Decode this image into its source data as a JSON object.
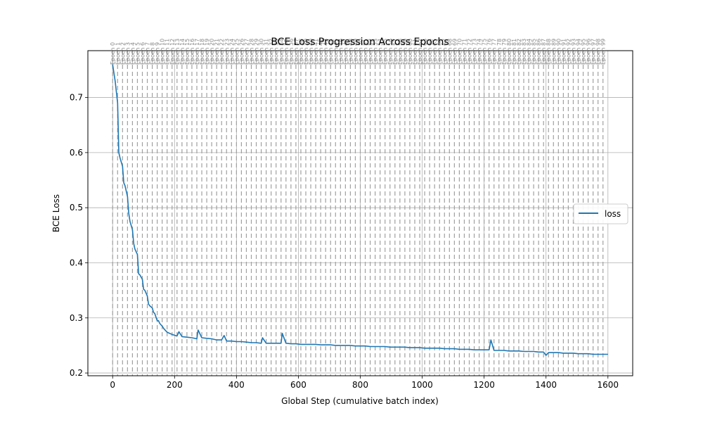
{
  "chart_data": {
    "type": "line",
    "title": "BCE Loss Progression Across Epochs",
    "xlabel": "Global Step (cumulative batch index)",
    "ylabel": "BCE Loss",
    "xlim": [
      -80,
      1680
    ],
    "ylim": [
      0.195,
      0.785
    ],
    "xticks": [
      0,
      200,
      400,
      600,
      800,
      1000,
      1200,
      1400,
      1600
    ],
    "yticks": [
      0.2,
      0.3,
      0.4,
      0.5,
      0.6,
      0.7
    ],
    "grid": true,
    "legend": {
      "position": "center-right",
      "entries": [
        "loss"
      ]
    },
    "epoch_markers": {
      "prefix": "Epoch",
      "count": 100,
      "steps_per_epoch": 16,
      "labels": [
        "Epoch 0",
        "Epoch 1",
        "Epoch 2",
        "Epoch 3",
        "Epoch 4",
        "Epoch 5",
        "Epoch 6",
        "Epoch 7",
        "Epoch 8",
        "Epoch 9",
        "Epoch 10",
        "Epoch 11",
        "Epoch 12",
        "Epoch 13",
        "Epoch 14",
        "Epoch 15",
        "Epoch 16",
        "Epoch 17",
        "Epoch 18",
        "Epoch 19",
        "Epoch 20",
        "Epoch 21",
        "Epoch 22",
        "Epoch 23",
        "Epoch 24",
        "Epoch 25",
        "Epoch 26",
        "Epoch 27",
        "Epoch 28",
        "Epoch 29",
        "Epoch 30",
        "Epoch 31",
        "Epoch 32",
        "Epoch 33",
        "Epoch 34",
        "Epoch 35",
        "Epoch 36",
        "Epoch 37",
        "Epoch 38",
        "Epoch 39",
        "Epoch 40",
        "Epoch 41",
        "Epoch 42",
        "Epoch 43",
        "Epoch 44",
        "Epoch 45",
        "Epoch 46",
        "Epoch 47",
        "Epoch 48",
        "Epoch 49",
        "Epoch 50",
        "Epoch 51",
        "Epoch 52",
        "Epoch 53",
        "Epoch 54",
        "Epoch 55",
        "Epoch 56",
        "Epoch 57",
        "Epoch 58",
        "Epoch 59",
        "Epoch 60",
        "Epoch 61",
        "Epoch 62",
        "Epoch 63",
        "Epoch 64",
        "Epoch 65",
        "Epoch 66",
        "Epoch 67",
        "Epoch 68",
        "Epoch 69",
        "Epoch 70",
        "Epoch 71",
        "Epoch 72",
        "Epoch 73",
        "Epoch 74",
        "Epoch 75",
        "Epoch 76",
        "Epoch 77",
        "Epoch 78",
        "Epoch 79",
        "Epoch 80",
        "Epoch 81",
        "Epoch 82",
        "Epoch 83",
        "Epoch 84",
        "Epoch 85",
        "Epoch 86",
        "Epoch 87",
        "Epoch 88",
        "Epoch 89",
        "Epoch 90",
        "Epoch 91",
        "Epoch 92",
        "Epoch 93",
        "Epoch 94",
        "Epoch 95",
        "Epoch 96",
        "Epoch 97",
        "Epoch 98",
        "Epoch 99"
      ]
    },
    "series": [
      {
        "name": "loss",
        "color": "#1f77b4",
        "x": [
          0,
          8,
          16,
          20,
          24,
          32,
          36,
          40,
          48,
          52,
          56,
          64,
          68,
          72,
          80,
          84,
          88,
          96,
          100,
          104,
          112,
          116,
          120,
          128,
          132,
          136,
          144,
          148,
          152,
          160,
          166,
          176,
          192,
          208,
          214,
          224,
          240,
          256,
          272,
          276,
          288,
          304,
          320,
          336,
          352,
          360,
          368,
          384,
          400,
          416,
          432,
          448,
          464,
          480,
          484,
          496,
          512,
          528,
          544,
          548,
          560,
          576,
          592,
          608,
          624,
          640,
          656,
          672,
          688,
          704,
          720,
          736,
          752,
          768,
          784,
          800,
          816,
          832,
          848,
          864,
          880,
          896,
          912,
          928,
          944,
          960,
          976,
          992,
          1008,
          1024,
          1040,
          1056,
          1072,
          1088,
          1104,
          1120,
          1136,
          1152,
          1168,
          1184,
          1200,
          1216,
          1222,
          1232,
          1248,
          1264,
          1280,
          1296,
          1312,
          1328,
          1344,
          1360,
          1376,
          1392,
          1400,
          1408,
          1424,
          1440,
          1456,
          1472,
          1488,
          1504,
          1520,
          1536,
          1552,
          1568,
          1584,
          1600
        ],
        "y": [
          0.76,
          0.73,
          0.69,
          0.6,
          0.59,
          0.575,
          0.545,
          0.54,
          0.52,
          0.49,
          0.475,
          0.46,
          0.435,
          0.425,
          0.415,
          0.38,
          0.378,
          0.37,
          0.352,
          0.35,
          0.34,
          0.325,
          0.322,
          0.318,
          0.31,
          0.308,
          0.295,
          0.295,
          0.29,
          0.285,
          0.28,
          0.274,
          0.27,
          0.267,
          0.275,
          0.266,
          0.265,
          0.264,
          0.262,
          0.278,
          0.264,
          0.263,
          0.262,
          0.26,
          0.26,
          0.268,
          0.258,
          0.258,
          0.257,
          0.257,
          0.256,
          0.255,
          0.255,
          0.254,
          0.264,
          0.254,
          0.254,
          0.254,
          0.254,
          0.272,
          0.254,
          0.253,
          0.253,
          0.252,
          0.252,
          0.252,
          0.252,
          0.251,
          0.251,
          0.251,
          0.25,
          0.25,
          0.25,
          0.25,
          0.249,
          0.249,
          0.249,
          0.248,
          0.248,
          0.248,
          0.248,
          0.247,
          0.247,
          0.247,
          0.247,
          0.246,
          0.246,
          0.246,
          0.245,
          0.245,
          0.245,
          0.245,
          0.244,
          0.244,
          0.244,
          0.243,
          0.243,
          0.243,
          0.242,
          0.242,
          0.242,
          0.242,
          0.26,
          0.241,
          0.241,
          0.241,
          0.24,
          0.24,
          0.24,
          0.239,
          0.239,
          0.239,
          0.238,
          0.238,
          0.232,
          0.237,
          0.237,
          0.237,
          0.236,
          0.236,
          0.236,
          0.235,
          0.235,
          0.235,
          0.234,
          0.234,
          0.234,
          0.234
        ]
      }
    ]
  }
}
